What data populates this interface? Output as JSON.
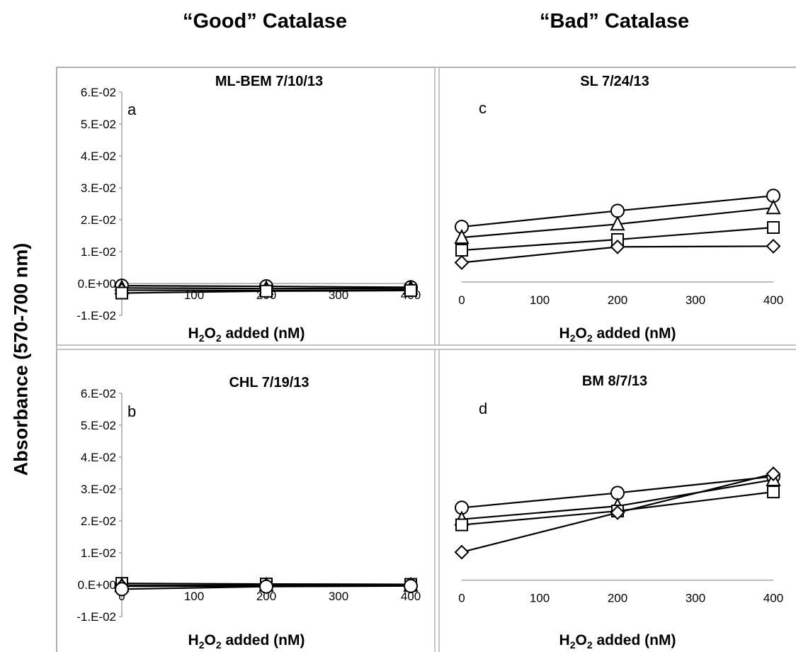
{
  "headers": {
    "left": "“Good” Catalase",
    "right": "“Bad” Catalase"
  },
  "y_label": "Absorbance (570-700 nm)",
  "xlabel_parts": [
    "H",
    "2",
    "O",
    "2",
    " added (nM)"
  ],
  "colors": {
    "frame": "#b0b0b0",
    "axis": "#a6a6a6",
    "line": "#000000",
    "marker_fill": "#ffffff"
  },
  "chart_data": [
    {
      "panel": "a",
      "title": "ML-BEM 7/10/13",
      "type": "line",
      "x": [
        0,
        200,
        400
      ],
      "ylim": [
        -0.01,
        0.06
      ],
      "yticks": [
        "6.E-02",
        "5.E-02",
        "4.E-02",
        "3.E-02",
        "2.E-02",
        "1.E-02",
        "0.E+00",
        "-1.E-02"
      ],
      "xticks": [
        "0",
        "100",
        "200",
        "300",
        "400"
      ],
      "series": [
        {
          "marker": "circle",
          "values": [
            -0.0007,
            -0.0009,
            -0.0012
          ]
        },
        {
          "marker": "triangle",
          "values": [
            -0.0014,
            -0.0016,
            -0.0015
          ]
        },
        {
          "marker": "diamond",
          "values": [
            -0.0021,
            -0.0022,
            -0.002
          ]
        },
        {
          "marker": "square",
          "values": [
            -0.003,
            -0.0024,
            -0.0022
          ]
        }
      ]
    },
    {
      "panel": "b",
      "title": "CHL 7/19/13",
      "type": "line",
      "x": [
        0,
        200,
        400
      ],
      "ylim": [
        -0.01,
        0.06
      ],
      "yticks": [
        "6.E-02",
        "5.E-02",
        "4.E-02",
        "3.E-02",
        "2.E-02",
        "1.E-02",
        "0.E+00",
        "-1.E-02"
      ],
      "xticks": [
        "0",
        "100",
        "200",
        "300",
        "400"
      ],
      "series": [
        {
          "marker": "square",
          "values": [
            0.0004,
            0.0002,
            0.0001
          ]
        },
        {
          "marker": "triangle",
          "values": [
            -0.0003,
            -0.0002,
            -0.0002
          ]
        },
        {
          "marker": "diamond",
          "values": [
            -0.0005,
            -0.0004,
            -0.0003
          ]
        },
        {
          "marker": "circle",
          "values": [
            -0.0014,
            -0.0006,
            -0.0004
          ]
        }
      ]
    },
    {
      "panel": "c",
      "title": "SL 7/24/13",
      "type": "line",
      "x": [
        0,
        200,
        400
      ],
      "ylim": [
        -0.01,
        0.06
      ],
      "xticks": [
        "0",
        "100",
        "200",
        "300",
        "400"
      ],
      "series": [
        {
          "marker": "circle",
          "values": [
            0.0165,
            0.0213,
            0.0258
          ]
        },
        {
          "marker": "triangle",
          "values": [
            0.0133,
            0.0173,
            0.0222
          ]
        },
        {
          "marker": "square",
          "values": [
            0.0095,
            0.0127,
            0.0163
          ]
        },
        {
          "marker": "diamond",
          "values": [
            0.0058,
            0.0105,
            0.0107
          ]
        }
      ]
    },
    {
      "panel": "d",
      "title": "BM 8/7/13",
      "type": "line",
      "x": [
        0,
        200,
        400
      ],
      "ylim": [
        -0.01,
        0.06
      ],
      "xticks": [
        "0",
        "100",
        "200",
        "300",
        "400"
      ],
      "series": [
        {
          "marker": "circle",
          "values": [
            0.022,
            0.0265,
            0.0315
          ]
        },
        {
          "marker": "triangle",
          "values": [
            0.0185,
            0.0225,
            0.0305
          ]
        },
        {
          "marker": "square",
          "values": [
            0.0168,
            0.021,
            0.0268
          ]
        },
        {
          "marker": "diamond",
          "values": [
            0.0085,
            0.0205,
            0.0323
          ]
        }
      ]
    }
  ]
}
